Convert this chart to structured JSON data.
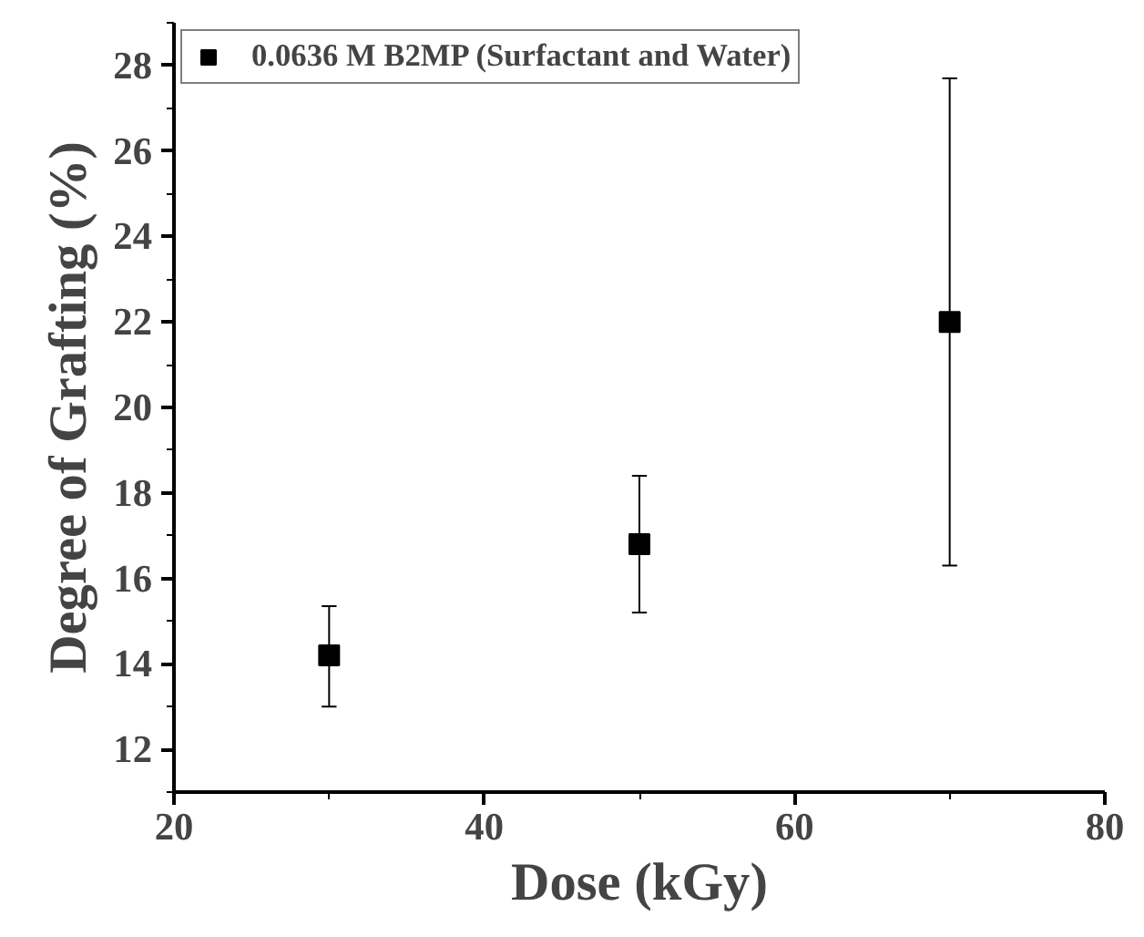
{
  "chart_data": {
    "type": "scatter",
    "xlabel": "Dose (kGy)",
    "ylabel": "Degree of Grafting (%)",
    "x": [
      30,
      50,
      70
    ],
    "series": [
      {
        "name": "0.0636 M B2MP (Surfactant and Water)",
        "color": "#000000",
        "values": [
          14.2,
          16.8,
          22.0
        ],
        "errors": [
          [
            13.0,
            15.35
          ],
          [
            15.2,
            18.4
          ],
          [
            16.3,
            27.7
          ]
        ]
      }
    ],
    "xlim": [
      20,
      80
    ],
    "xticks": [
      20,
      40,
      60,
      80
    ],
    "ylim": [
      11,
      29
    ],
    "yticks": [
      12,
      14,
      16,
      18,
      20,
      22,
      24,
      26,
      28
    ],
    "marker": "square",
    "legend": "top left",
    "grid": false
  }
}
